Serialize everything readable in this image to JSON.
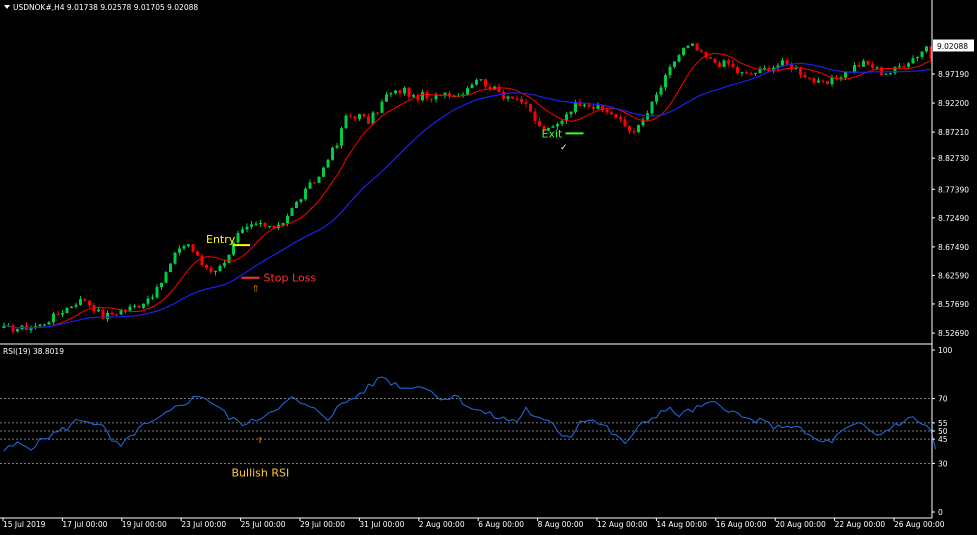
{
  "chart_data": [
    {
      "type": "candlestick",
      "title": "USDNOK#,H4  9.01738 9.02578 9.01705 9.02088",
      "instrument": "USDNOK#",
      "timeframe": "H4",
      "ohlc_header": [
        "9.01738",
        "9.02578",
        "9.01705",
        "9.02088"
      ],
      "current_price": 9.02088,
      "current_price_label": "9.02088",
      "ylim": [
        8.515,
        9.075
      ],
      "y_ticks": [
        "9.02088",
        "8.97190",
        "8.92200",
        "8.87210",
        "8.82730",
        "8.77390",
        "8.72490",
        "8.67490",
        "8.62590",
        "8.57690",
        "8.52690"
      ],
      "bull_color": "#00cc44",
      "bear_color": "#ff0000",
      "grid": false,
      "anchors": [
        [
          0,
          8.535
        ],
        [
          4,
          8.535
        ],
        [
          8,
          8.54
        ],
        [
          12,
          8.56
        ],
        [
          16,
          8.58
        ],
        [
          18,
          8.585
        ],
        [
          20,
          8.57
        ],
        [
          22,
          8.555
        ],
        [
          26,
          8.565
        ],
        [
          30,
          8.575
        ],
        [
          34,
          8.6
        ],
        [
          37,
          8.645
        ],
        [
          39,
          8.675
        ],
        [
          41,
          8.68
        ],
        [
          44,
          8.645
        ],
        [
          46,
          8.635
        ],
        [
          48,
          8.64
        ],
        [
          50,
          8.665
        ],
        [
          52,
          8.695
        ],
        [
          55,
          8.71
        ],
        [
          57,
          8.715
        ],
        [
          59,
          8.705
        ],
        [
          62,
          8.72
        ],
        [
          64,
          8.74
        ],
        [
          66,
          8.76
        ],
        [
          68,
          8.78
        ],
        [
          70,
          8.795
        ],
        [
          72,
          8.83
        ],
        [
          74,
          8.85
        ],
        [
          76,
          8.9
        ],
        [
          79,
          8.9
        ],
        [
          81,
          8.89
        ],
        [
          83,
          8.91
        ],
        [
          85,
          8.935
        ],
        [
          87,
          8.94
        ],
        [
          89,
          8.945
        ],
        [
          91,
          8.93
        ],
        [
          93,
          8.935
        ],
        [
          95,
          8.925
        ],
        [
          97,
          8.94
        ],
        [
          99,
          8.94
        ],
        [
          101,
          8.935
        ],
        [
          103,
          8.95
        ],
        [
          105,
          8.965
        ],
        [
          107,
          8.955
        ],
        [
          109,
          8.945
        ],
        [
          111,
          8.935
        ],
        [
          113,
          8.935
        ],
        [
          115,
          8.925
        ],
        [
          117,
          8.905
        ],
        [
          119,
          8.88
        ],
        [
          121,
          8.875
        ],
        [
          123,
          8.885
        ],
        [
          125,
          8.905
        ],
        [
          127,
          8.92
        ],
        [
          129,
          8.925
        ],
        [
          131,
          8.915
        ],
        [
          133,
          8.91
        ],
        [
          135,
          8.905
        ],
        [
          137,
          8.89
        ],
        [
          139,
          8.875
        ],
        [
          141,
          8.88
        ],
        [
          143,
          8.905
        ],
        [
          145,
          8.935
        ],
        [
          147,
          8.965
        ],
        [
          149,
          8.995
        ],
        [
          151,
          9.015
        ],
        [
          153,
          9.02
        ],
        [
          155,
          9.005
        ],
        [
          157,
          8.995
        ],
        [
          159,
          8.99
        ],
        [
          161,
          8.99
        ],
        [
          163,
          8.975
        ],
        [
          165,
          8.97
        ],
        [
          167,
          8.975
        ],
        [
          169,
          8.98
        ],
        [
          171,
          8.985
        ],
        [
          173,
          8.99
        ],
        [
          175,
          8.985
        ],
        [
          177,
          8.975
        ],
        [
          179,
          8.965
        ],
        [
          181,
          8.955
        ],
        [
          183,
          8.955
        ],
        [
          185,
          8.965
        ],
        [
          187,
          8.975
        ],
        [
          189,
          8.985
        ],
        [
          191,
          8.99
        ],
        [
          193,
          8.985
        ],
        [
          195,
          8.975
        ],
        [
          197,
          8.975
        ],
        [
          199,
          8.985
        ],
        [
          201,
          8.995
        ],
        [
          203,
          9.005
        ],
        [
          205,
          9.02
        ],
        [
          206,
          9.0
        ]
      ],
      "series": [
        {
          "name": "fast-ma",
          "color": "#ff0000"
        },
        {
          "name": "slow-ma",
          "color": "#1a22ee"
        }
      ],
      "annotations": [
        {
          "text": "Entry",
          "color": "#ffff00",
          "bar": 52,
          "price": 8.678
        },
        {
          "text": "Stop Loss",
          "color": "#ff3333",
          "bar": 55,
          "price": 8.622
        },
        {
          "text": "Exit",
          "color": "#33ff33",
          "bar": 127,
          "price": 8.87
        },
        {
          "text": "⇧",
          "color": "#ff9900",
          "bar": 56,
          "price": 8.598
        },
        {
          "text": "✓",
          "color": "#ffffff",
          "bar": 124,
          "price": 8.855
        }
      ]
    },
    {
      "type": "line",
      "title": "RSI(19) 38.8019",
      "period": 19,
      "last_value": 38.8019,
      "ylim": [
        0,
        100
      ],
      "y_ticks": [
        "100",
        "70",
        "55",
        "50",
        "45",
        "30",
        "0"
      ],
      "levels": [
        70,
        55,
        50,
        45,
        30
      ],
      "line_color": "#1e6fe8",
      "level_color": "#a0a0a0",
      "anchors": [
        [
          0,
          38
        ],
        [
          3,
          42
        ],
        [
          6,
          40
        ],
        [
          10,
          47
        ],
        [
          14,
          52
        ],
        [
          16,
          56
        ],
        [
          18,
          57
        ],
        [
          20,
          55
        ],
        [
          22,
          52
        ],
        [
          24,
          44
        ],
        [
          26,
          40
        ],
        [
          28,
          46
        ],
        [
          30,
          52
        ],
        [
          33,
          55
        ],
        [
          36,
          60
        ],
        [
          39,
          66
        ],
        [
          42,
          70
        ],
        [
          44,
          72
        ],
        [
          46,
          68
        ],
        [
          48,
          64
        ],
        [
          50,
          58
        ],
        [
          52,
          56
        ],
        [
          54,
          54
        ],
        [
          56,
          57
        ],
        [
          58,
          60
        ],
        [
          60,
          64
        ],
        [
          62,
          66
        ],
        [
          64,
          70
        ],
        [
          66,
          67
        ],
        [
          68,
          64
        ],
        [
          70,
          62
        ],
        [
          72,
          58
        ],
        [
          74,
          64
        ],
        [
          76,
          68
        ],
        [
          78,
          71
        ],
        [
          80,
          75
        ],
        [
          82,
          79
        ],
        [
          84,
          84
        ],
        [
          86,
          80
        ],
        [
          88,
          78
        ],
        [
          90,
          76
        ],
        [
          92,
          79
        ],
        [
          94,
          76
        ],
        [
          96,
          72
        ],
        [
          98,
          70
        ],
        [
          100,
          72
        ],
        [
          102,
          68
        ],
        [
          104,
          64
        ],
        [
          106,
          62
        ],
        [
          108,
          60
        ],
        [
          110,
          58
        ],
        [
          112,
          57
        ],
        [
          114,
          56
        ],
        [
          116,
          64
        ],
        [
          118,
          58
        ],
        [
          120,
          56
        ],
        [
          122,
          54
        ],
        [
          124,
          48
        ],
        [
          126,
          47
        ],
        [
          128,
          56
        ],
        [
          130,
          58
        ],
        [
          132,
          55
        ],
        [
          134,
          52
        ],
        [
          136,
          46
        ],
        [
          138,
          43
        ],
        [
          140,
          48
        ],
        [
          142,
          55
        ],
        [
          144,
          58
        ],
        [
          146,
          62
        ],
        [
          148,
          63
        ],
        [
          150,
          60
        ],
        [
          152,
          62
        ],
        [
          154,
          64
        ],
        [
          156,
          66
        ],
        [
          158,
          67
        ],
        [
          160,
          65
        ],
        [
          162,
          62
        ],
        [
          164,
          58
        ],
        [
          166,
          57
        ],
        [
          168,
          56
        ],
        [
          170,
          54
        ],
        [
          172,
          52
        ],
        [
          174,
          54
        ],
        [
          176,
          52
        ],
        [
          178,
          49
        ],
        [
          180,
          45
        ],
        [
          182,
          43
        ],
        [
          184,
          44
        ],
        [
          186,
          49
        ],
        [
          188,
          52
        ],
        [
          190,
          54
        ],
        [
          192,
          51
        ],
        [
          194,
          47
        ],
        [
          196,
          50
        ],
        [
          198,
          54
        ],
        [
          200,
          56
        ],
        [
          202,
          58
        ],
        [
          204,
          55
        ],
        [
          206,
          50
        ],
        [
          207,
          38.8
        ]
      ],
      "annotations": [
        {
          "text": "Bullish RSI",
          "color": "#ffcc33",
          "bar": 57,
          "value": 22
        },
        {
          "text": "⇧",
          "color": "#ff9900",
          "bar": 57,
          "value": 43
        }
      ]
    }
  ],
  "x_axis": {
    "labels": [
      "15 Jul 2019",
      "17 Jul 00:00",
      "19 Jul 00:00",
      "23 Jul 00:00",
      "25 Jul 00:00",
      "29 Jul 00:00",
      "31 Jul 00:00",
      "2 Aug 00:00",
      "6 Aug 00:00",
      "8 Aug 00:00",
      "12 Aug 00:00",
      "14 Aug 00:00",
      "16 Aug 00:00",
      "20 Aug 00:00",
      "22 Aug 00:00",
      "26 Aug 00:00"
    ]
  },
  "menu_icon": "triangle-down-icon",
  "theme": {
    "background": "#000000",
    "text": "#ffffff",
    "separator": "#ffffff"
  }
}
